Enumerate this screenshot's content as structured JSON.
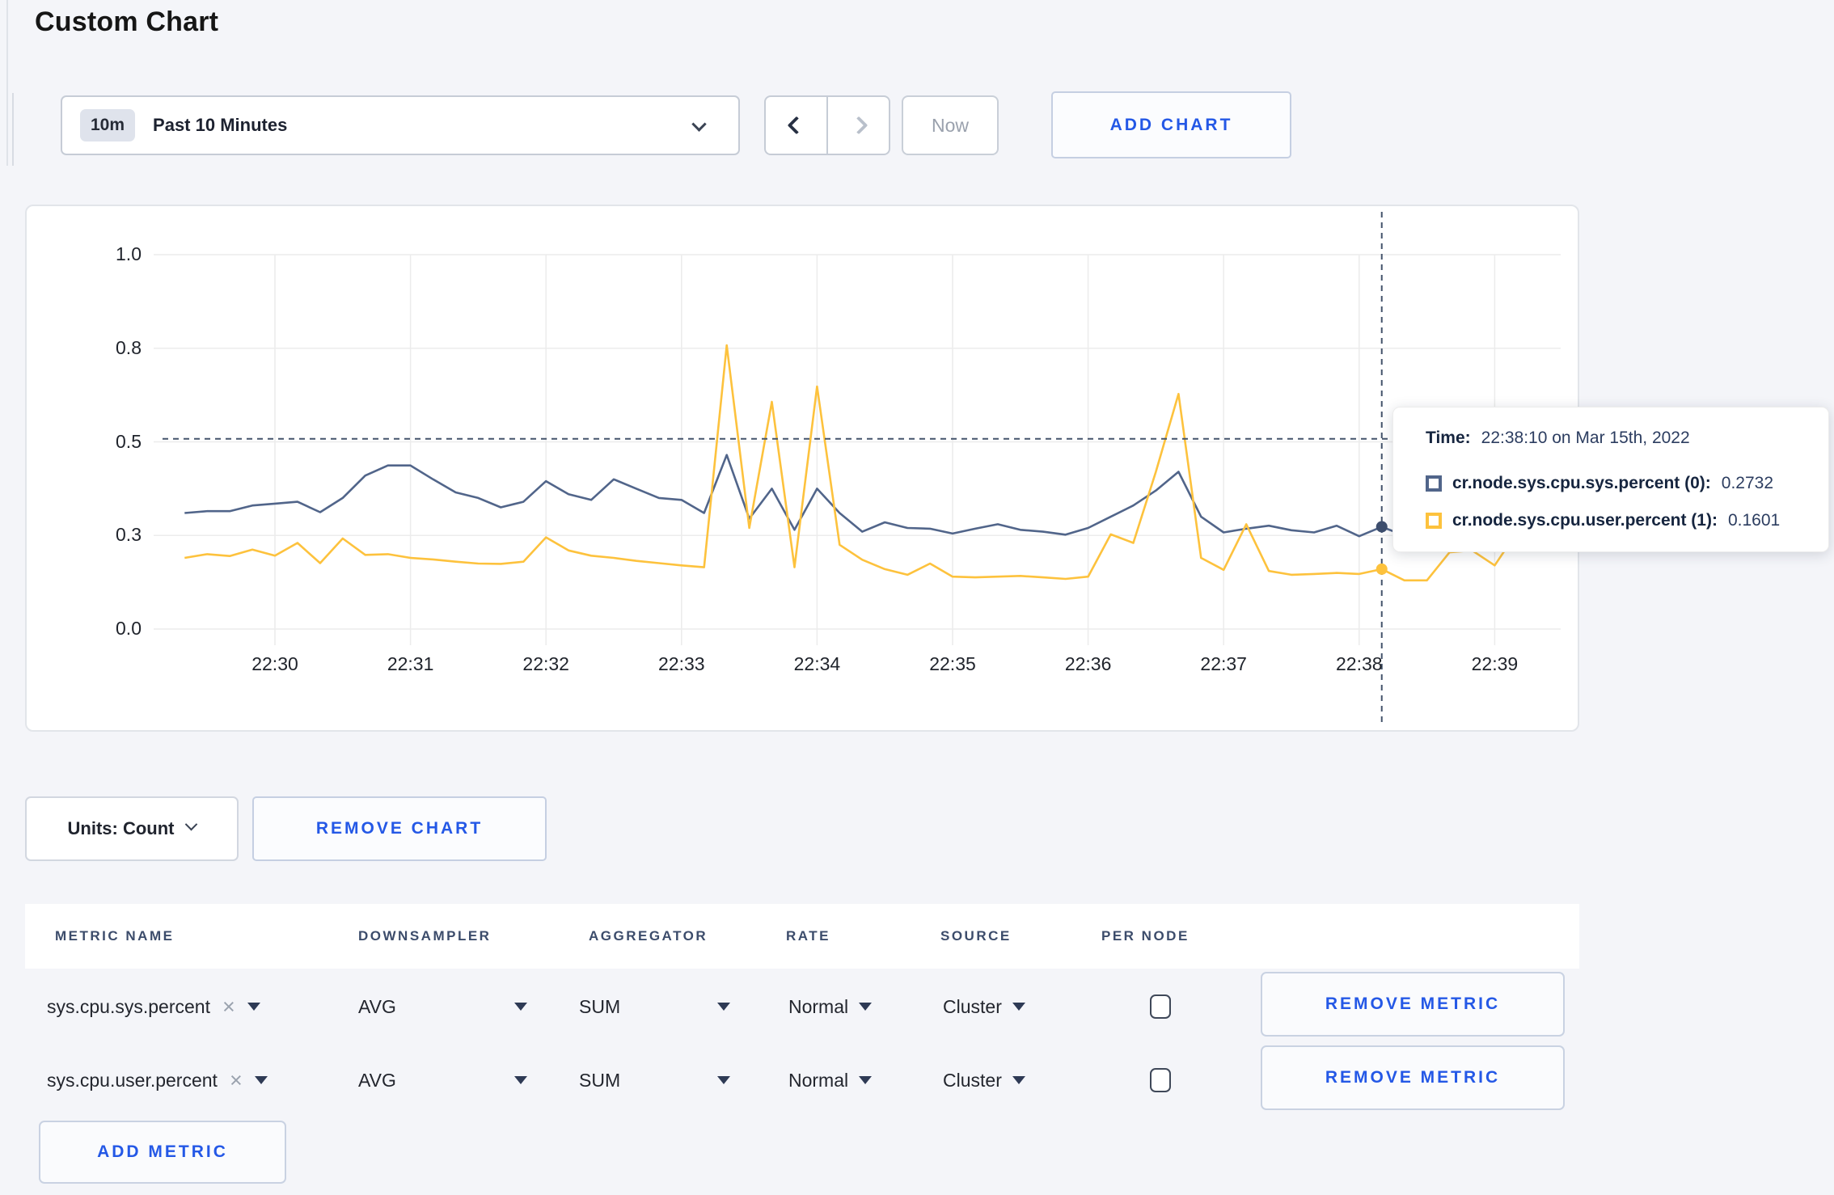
{
  "page": {
    "title": "Custom Chart"
  },
  "colors": {
    "accent": "#2458e6",
    "series_sys": "#51658a",
    "series_user": "#fdc23d",
    "crosshair": "#44536b",
    "grid": "#ececec",
    "dot_sys": "#3d4e6e",
    "dot_user": "#fdc23d"
  },
  "toolbar": {
    "time_badge": "10m",
    "time_label": "Past 10 Minutes",
    "now_label": "Now",
    "add_chart_label": "ADD CHART"
  },
  "chart_controls": {
    "units_label": "Units: Count",
    "remove_chart_label": "REMOVE CHART"
  },
  "tooltip": {
    "time_label": "Time:",
    "time_value": "22:38:10 on Mar 15th, 2022",
    "series": [
      {
        "name": "cr.node.sys.cpu.sys.percent (0):",
        "value": "0.2732"
      },
      {
        "name": "cr.node.sys.cpu.user.percent (1):",
        "value": "0.1601"
      }
    ]
  },
  "chart_data": {
    "type": "line",
    "title": "",
    "xlabel": "",
    "ylabel": "",
    "x_start_time": "22:29:20",
    "x_interval_seconds": 10,
    "x_start_min": -0.66667,
    "x_step_min": 0.16667,
    "xticks": [
      "22:30",
      "22:31",
      "22:32",
      "22:33",
      "22:34",
      "22:35",
      "22:36",
      "22:37",
      "22:38",
      "22:39"
    ],
    "yticks": [
      {
        "label": "0.0",
        "value": 0
      },
      {
        "label": "0.3",
        "value": 0.25
      },
      {
        "label": "0.5",
        "value": 0.5
      },
      {
        "label": "0.8",
        "value": 0.75
      },
      {
        "label": "1.0",
        "value": 1
      }
    ],
    "ylim": [
      0,
      1
    ],
    "grid": true,
    "series": [
      {
        "name": "cr.node.sys.cpu.sys.percent",
        "color": "#51658a",
        "values": [
          0.31,
          0.315,
          0.315,
          0.33,
          0.335,
          0.34,
          0.312,
          0.35,
          0.41,
          0.437,
          0.437,
          0.4,
          0.365,
          0.35,
          0.325,
          0.34,
          0.395,
          0.36,
          0.345,
          0.4,
          0.375,
          0.35,
          0.345,
          0.31,
          0.465,
          0.295,
          0.375,
          0.265,
          0.375,
          0.31,
          0.26,
          0.285,
          0.27,
          0.268,
          0.255,
          0.268,
          0.28,
          0.265,
          0.26,
          0.252,
          0.27,
          0.3,
          0.33,
          0.37,
          0.42,
          0.3,
          0.258,
          0.268,
          0.276,
          0.264,
          0.258,
          0.276,
          0.248,
          0.273,
          0.25,
          0.245,
          0.25,
          0.255,
          0.25,
          0.26,
          0.255
        ]
      },
      {
        "name": "cr.node.sys.cpu.user.percent",
        "color": "#fdc23d",
        "values": [
          0.19,
          0.2,
          0.195,
          0.212,
          0.196,
          0.23,
          0.176,
          0.242,
          0.198,
          0.2,
          0.19,
          0.186,
          0.18,
          0.175,
          0.174,
          0.18,
          0.245,
          0.21,
          0.196,
          0.19,
          0.182,
          0.176,
          0.17,
          0.165,
          0.758,
          0.27,
          0.607,
          0.165,
          0.648,
          0.225,
          0.185,
          0.16,
          0.145,
          0.175,
          0.14,
          0.138,
          0.14,
          0.142,
          0.138,
          0.134,
          0.14,
          0.253,
          0.23,
          0.42,
          0.628,
          0.19,
          0.158,
          0.28,
          0.155,
          0.145,
          0.147,
          0.15,
          0.147,
          0.16,
          0.13,
          0.13,
          0.205,
          0.21,
          0.17,
          0.26,
          0.24
        ]
      }
    ],
    "crosshair": {
      "time": "22:38:10",
      "x_min": 8.1667,
      "y_value": 0.508,
      "sys_value": 0.2732,
      "user_value": 0.1601
    }
  },
  "metrics_table": {
    "headers": [
      "METRIC NAME",
      "DOWNSAMPLER",
      "AGGREGATOR",
      "RATE",
      "SOURCE",
      "PER NODE"
    ],
    "rows": [
      {
        "name": "sys.cpu.sys.percent",
        "downsampler": "AVG",
        "aggregator": "SUM",
        "rate": "Normal",
        "source": "Cluster",
        "per_node_checked": false,
        "remove_label": "REMOVE METRIC"
      },
      {
        "name": "sys.cpu.user.percent",
        "downsampler": "AVG",
        "aggregator": "SUM",
        "rate": "Normal",
        "source": "Cluster",
        "per_node_checked": false,
        "remove_label": "REMOVE METRIC"
      }
    ],
    "add_metric_label": "ADD METRIC"
  }
}
